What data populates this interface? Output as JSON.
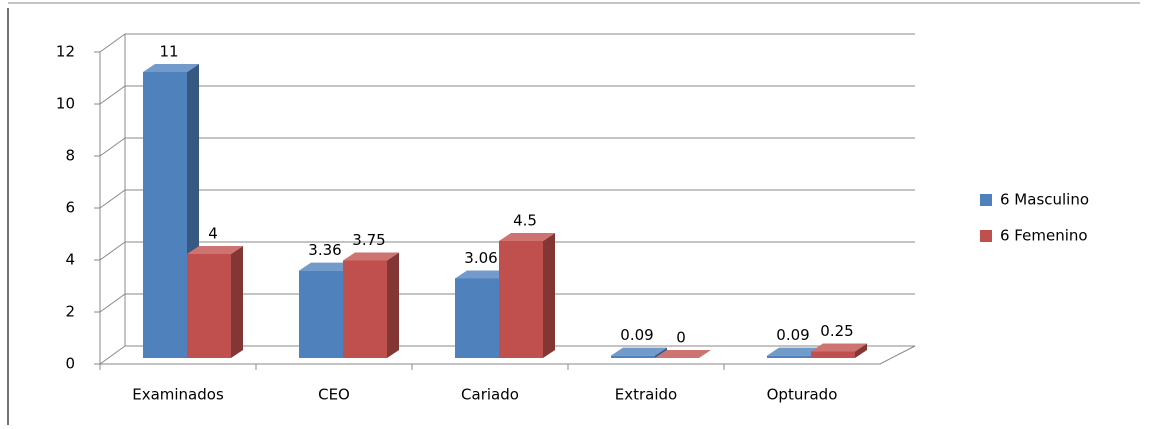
{
  "chart_data": {
    "type": "bar3d",
    "categories": [
      "Examinados",
      "CEO",
      "Cariado",
      "Extraido",
      "Opturado"
    ],
    "series": [
      {
        "name": "6 Masculino",
        "color": "#4f81bd",
        "values": [
          11,
          3.36,
          3.06,
          0.09,
          0.09
        ]
      },
      {
        "name": "6 Femenino",
        "color": "#c0504d",
        "values": [
          4,
          3.75,
          4.5,
          0,
          0.25
        ]
      }
    ],
    "ylim": [
      0,
      12
    ],
    "yticks": [
      0,
      2,
      4,
      6,
      8,
      10,
      12
    ],
    "grid": true,
    "legend": "right"
  }
}
